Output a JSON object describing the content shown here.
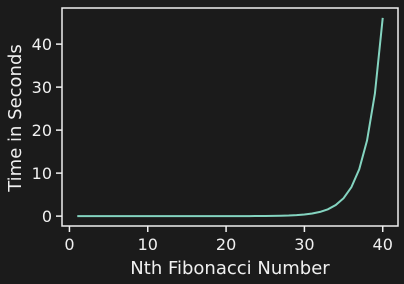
{
  "chart_data": {
    "type": "line",
    "xlabel": "Nth Fibonacci Number",
    "ylabel": "Time in Seconds",
    "x": [
      1,
      2,
      3,
      4,
      5,
      6,
      7,
      8,
      9,
      10,
      11,
      12,
      13,
      14,
      15,
      16,
      17,
      18,
      19,
      20,
      21,
      22,
      23,
      24,
      25,
      26,
      27,
      28,
      29,
      30,
      31,
      32,
      33,
      34,
      35,
      36,
      37,
      38,
      39,
      40
    ],
    "values": [
      0,
      0,
      0,
      0,
      0,
      0,
      0,
      0,
      0,
      0,
      0,
      0,
      0,
      0,
      0,
      0,
      0,
      0,
      0,
      0,
      0,
      0,
      0.01,
      0.02,
      0.03,
      0.05,
      0.09,
      0.14,
      0.23,
      0.37,
      0.61,
      0.98,
      1.59,
      2.57,
      4.16,
      6.73,
      10.9,
      17.6,
      28.5,
      46.1
    ],
    "color": "#84d4c0",
    "xlim": [
      -0.95,
      41.95
    ],
    "xticks": [
      0,
      10,
      20,
      30,
      40
    ],
    "ylim": [
      -2.3,
      48.4
    ],
    "yticks": [
      0,
      10,
      20,
      30,
      40
    ]
  }
}
